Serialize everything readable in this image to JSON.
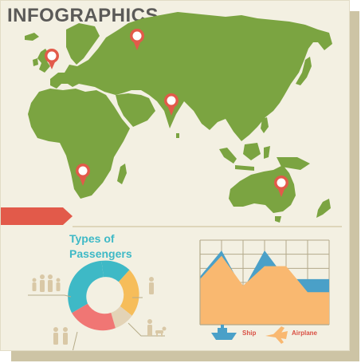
{
  "title": "INFOGRAPHICS",
  "map": {
    "pin_color": "#e25a4a",
    "land_color": "#7ba441",
    "pins": [
      "pin-europe-west",
      "pin-russia",
      "pin-india",
      "pin-southern-africa",
      "pin-australia"
    ]
  },
  "banner": {
    "color": "#e25a4a"
  },
  "passengers": {
    "title_line1": "Types of",
    "title_line2": "Passengers",
    "segments": [
      {
        "name": "adults-group",
        "color": "#3eb9c6"
      },
      {
        "name": "single-person",
        "color": "#f6bd5a"
      },
      {
        "name": "pet",
        "color": "#e3d3b6"
      },
      {
        "name": "couple",
        "color": "#f07674"
      },
      {
        "name": "family",
        "color": "#3eb9c6"
      }
    ]
  },
  "chart_data": {
    "type": "area",
    "x": [
      1,
      2,
      3,
      4,
      5,
      6,
      7
    ],
    "series": [
      {
        "name": "Ship",
        "values": [
          3.7,
          5.7,
          2.7,
          5.7,
          3.5,
          3.5,
          3.5
        ],
        "color": "#4aa0c8"
      },
      {
        "name": "Airplane",
        "values": [
          3.5,
          5.3,
          3.0,
          4.5,
          4.5,
          2.5,
          2.5
        ],
        "color": "#f9b870"
      }
    ],
    "ylim": [
      0,
      6.5
    ],
    "grid": true,
    "legend": "bottom"
  },
  "legend": {
    "ship_label": "Ship",
    "airplane_label": "Airplane"
  }
}
